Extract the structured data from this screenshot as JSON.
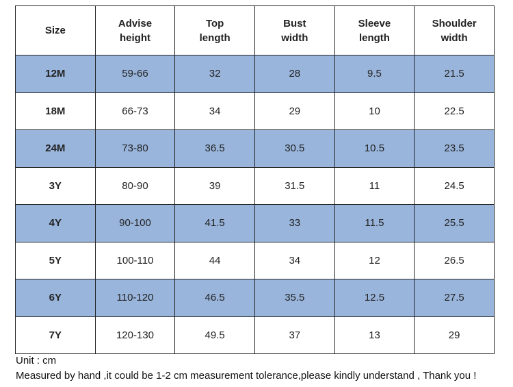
{
  "table": {
    "header": [
      "Size",
      "Advise\nheight",
      "Top\nlength",
      "Bust\nwidth",
      "Sleeve\nlength",
      "Shoulder\nwidth"
    ],
    "rows": [
      [
        "12M",
        "59-66",
        32,
        28,
        9.5,
        21.5
      ],
      [
        "18M",
        "66-73",
        34,
        29,
        10,
        22.5
      ],
      [
        "24M",
        "73-80",
        36.5,
        30.5,
        10.5,
        23.5
      ],
      [
        "3Y",
        "80-90",
        39,
        31.5,
        11,
        24.5
      ],
      [
        "4Y",
        "90-100",
        41.5,
        33,
        11.5,
        25.5
      ],
      [
        "5Y",
        "100-110",
        44,
        34,
        12,
        26.5
      ],
      [
        "6Y",
        "110-120",
        46.5,
        35.5,
        12.5,
        27.5
      ],
      [
        "7Y",
        "120-130",
        49.5,
        37,
        13,
        29
      ]
    ]
  },
  "notes": [
    "Unit : cm",
    "Measured by hand ,it could be 1-2 cm measurement tolerance,please kindly understand , Thank you !"
  ]
}
